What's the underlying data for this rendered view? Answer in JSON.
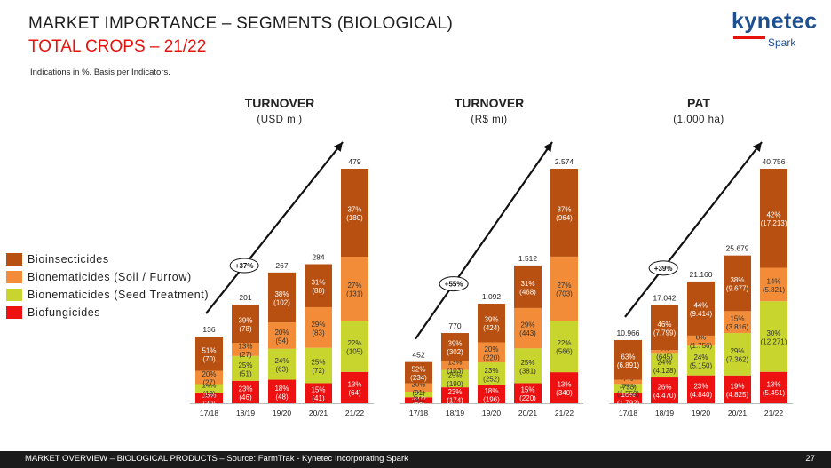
{
  "header": {
    "title": "MARKET IMPORTANCE  – SEGMENTS (BIOLOGICAL)",
    "subtitle": "TOTAL CROPS – 21/22",
    "note": "Indications in %. Basis per Indicators."
  },
  "logo": {
    "main": "kynetec",
    "sub": "Spark"
  },
  "colors": {
    "bioinsecticides": "#b75010",
    "soil": "#f28c38",
    "seed": "#c8d52f",
    "biofungicides": "#ee1111",
    "title_red": "#e8120c"
  },
  "legend": [
    {
      "label": "Bioinsecticides",
      "color": "#b75010"
    },
    {
      "label": "Bionematicides (Soil / Furrow)",
      "color": "#f28c38"
    },
    {
      "label": "Bionematicides (Seed Treatment)",
      "color": "#c8d52f"
    },
    {
      "label": "Biofungicides",
      "color": "#ee1111"
    }
  ],
  "chart_data": [
    {
      "type": "bar",
      "title": "TURNOVER",
      "unit": "(USD mi)",
      "categories": [
        "17/18",
        "18/19",
        "19/20",
        "20/21",
        "21/22"
      ],
      "totals": [
        "136",
        "201",
        "267",
        "284",
        "479"
      ],
      "total_values": [
        136,
        201,
        267,
        284,
        479
      ],
      "growth": "+37%",
      "series": [
        {
          "name": "Biofungicides",
          "values": [
            20,
            46,
            48,
            41,
            64
          ],
          "labels": [
            [
              "15%",
              "(20)"
            ],
            [
              "23%",
              "(46)"
            ],
            [
              "18%",
              "(48)"
            ],
            [
              "15%",
              "(41)"
            ],
            [
              "13%",
              "(64)"
            ]
          ]
        },
        {
          "name": "Bionematicides (Seed Treatment)",
          "values": [
            19,
            51,
            63,
            72,
            105
          ],
          "labels": [
            [
              "14%",
              "(19)"
            ],
            [
              "25%",
              "(51)"
            ],
            [
              "24%",
              "(63)"
            ],
            [
              "25%",
              "(72)"
            ],
            [
              "22%",
              "(105)"
            ]
          ]
        },
        {
          "name": "Bionematicides (Soil / Furrow)",
          "values": [
            27,
            27,
            54,
            83,
            131
          ],
          "labels": [
            [
              "20%",
              "(27)"
            ],
            [
              "13%",
              "(27)"
            ],
            [
              "20%",
              "(54)"
            ],
            [
              "29%",
              "(83)"
            ],
            [
              "27%",
              "(131)"
            ]
          ]
        },
        {
          "name": "Bioinsecticides",
          "values": [
            70,
            78,
            102,
            88,
            180
          ],
          "labels": [
            [
              "51%",
              "(70)"
            ],
            [
              "39%",
              "(78)"
            ],
            [
              "38%",
              "(102)"
            ],
            [
              "31%",
              "(88)"
            ],
            [
              "37%",
              "(180)"
            ]
          ]
        }
      ]
    },
    {
      "type": "bar",
      "title": "TURNOVER",
      "unit": "(R$ mi)",
      "categories": [
        "17/18",
        "18/19",
        "19/20",
        "20/21",
        "21/22"
      ],
      "totals": [
        "452",
        "770",
        "1.092",
        "1.512",
        "2.574"
      ],
      "total_values": [
        452,
        770,
        1092,
        1512,
        2574
      ],
      "growth": "+55%",
      "series": [
        {
          "name": "Biofungicides",
          "values": [
            66,
            174,
            196,
            220,
            340
          ],
          "labels": [
            [
              "15%",
              "(66)"
            ],
            [
              "23%",
              "(174)"
            ],
            [
              "18%",
              "(196)"
            ],
            [
              "15%",
              "(220)"
            ],
            [
              "13%",
              "(340)"
            ]
          ]
        },
        {
          "name": "Bionematicides (Seed Treatment)",
          "values": [
            61,
            190,
            252,
            381,
            566
          ],
          "labels": [
            [
              "13%",
              "(61)"
            ],
            [
              "25%",
              "(190)"
            ],
            [
              "23%",
              "(252)"
            ],
            [
              "25%",
              "(381)"
            ],
            [
              "22%",
              "(566)"
            ]
          ]
        },
        {
          "name": "Bionematicides (Soil / Furrow)",
          "values": [
            91,
            103,
            220,
            443,
            703
          ],
          "labels": [
            [
              "20%",
              "(91)"
            ],
            [
              "13%",
              "(103)"
            ],
            [
              "20%",
              "(220)"
            ],
            [
              "29%",
              "(443)"
            ],
            [
              "27%",
              "(703)"
            ]
          ]
        },
        {
          "name": "Bioinsecticides",
          "values": [
            234,
            302,
            424,
            468,
            964
          ],
          "labels": [
            [
              "52%",
              "(234)"
            ],
            [
              "39%",
              "(302)"
            ],
            [
              "39%",
              "(424)"
            ],
            [
              "31%",
              "(468)"
            ],
            [
              "37%",
              "(964)"
            ]
          ]
        }
      ]
    },
    {
      "type": "bar",
      "title": "PAT",
      "unit": "(1.000 ha)",
      "categories": [
        "17/18",
        "18/19",
        "19/20",
        "20/21",
        "21/22"
      ],
      "totals": [
        "10.966",
        "17.042",
        "21.160",
        "25.679",
        "40.756"
      ],
      "total_values": [
        10966,
        17042,
        21160,
        25679,
        40756
      ],
      "growth": "+39%",
      "series": [
        {
          "name": "Biofungicides",
          "values": [
            1792,
            4470,
            4840,
            4825,
            5451
          ],
          "labels": [
            [
              "16%",
              "(1.792)"
            ],
            [
              "26%",
              "(4.470)"
            ],
            [
              "23%",
              "(4.840)"
            ],
            [
              "19%",
              "(4.825)"
            ],
            [
              "13%",
              "(5.451)"
            ]
          ]
        },
        {
          "name": "Bionematicides (Seed Treatment)",
          "values": [
            1550,
            4128,
            5150,
            7362,
            12271
          ],
          "labels": [
            [
              "14%",
              "(1.550)"
            ],
            [
              "24%",
              "(4.128)"
            ],
            [
              "24%",
              "(5.150)"
            ],
            [
              "29%",
              "(7.362)"
            ],
            [
              "30%",
              "(12.271)"
            ]
          ]
        },
        {
          "name": "Bionematicides (Soil / Furrow)",
          "values": [
            733,
            645,
            1756,
            3816,
            5821
          ],
          "labels": [
            [
              "7%",
              "(733)"
            ],
            [
              "4%",
              "(645)"
            ],
            [
              "8%",
              "(1.756)"
            ],
            [
              "15%",
              "(3.816)"
            ],
            [
              "14%",
              "(5.821)"
            ]
          ]
        },
        {
          "name": "Bioinsecticides",
          "values": [
            6891,
            7799,
            9414,
            9677,
            17213
          ],
          "labels": [
            [
              "63%",
              "(6.891)"
            ],
            [
              "46%",
              "(7.799)"
            ],
            [
              "44%",
              "(9.414)"
            ],
            [
              "38%",
              "(9.677)"
            ],
            [
              "42%",
              "(17.213)"
            ]
          ]
        }
      ]
    }
  ],
  "footer": {
    "text": "MARKET OVERVIEW – BIOLOGICAL PRODUCTS – Source: FarmTrak - Kynetec Incorporating Spark",
    "page": "27"
  }
}
